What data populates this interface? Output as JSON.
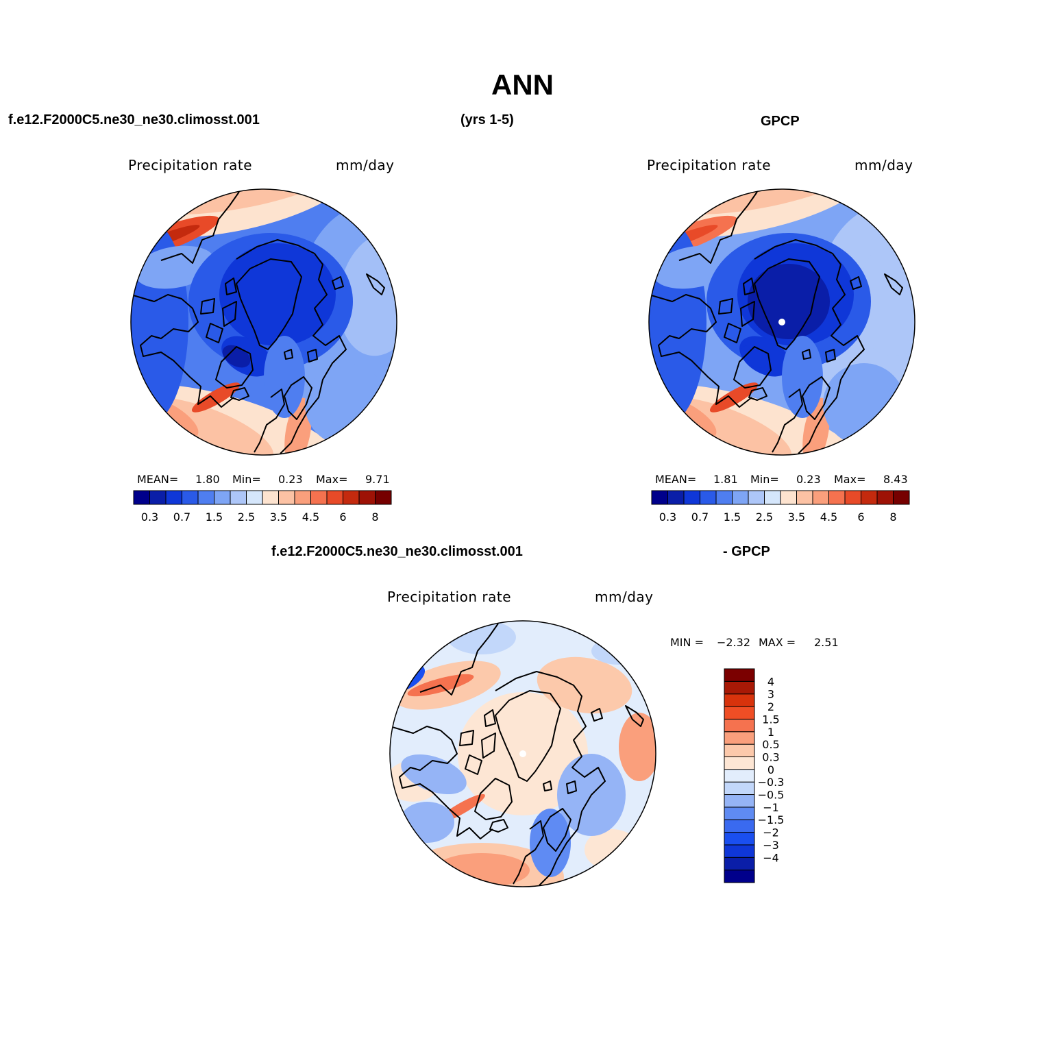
{
  "figure": {
    "title": "ANN",
    "top_case": "f.e12.F2000C5.ne30_ne30.climosst.001",
    "years": "(yrs 1-5)",
    "top_obs": "GPCP",
    "bottom_case": "f.e12.F2000C5.ne30_ne30.climosst.001",
    "bottom_obs": "- GPCP"
  },
  "palettes": {
    "abs": [
      "#00008b",
      "#0a1ea8",
      "#0f37d8",
      "#2a5ae8",
      "#4f7ef0",
      "#7ea5f5",
      "#adc6f8",
      "#d5e6fb",
      "#fde3cf",
      "#fcc2a4",
      "#fa9f7c",
      "#f5724f",
      "#e84a28",
      "#c42a0e",
      "#9e1206",
      "#760000"
    ],
    "diff": [
      "#00008b",
      "#0a1ea8",
      "#0f37d8",
      "#1a4ff0",
      "#3a6af0",
      "#5f8bf3",
      "#95b4f6",
      "#c2d7fa",
      "#e2edfc",
      "#fde6d4",
      "#fcc9ab",
      "#fa9f7c",
      "#f5724f",
      "#f04e25",
      "#d8330c",
      "#a81906",
      "#7b0000"
    ]
  },
  "chart_data": [
    {
      "type": "heatmap",
      "panel": "model",
      "projection": "north-polar-stereographic",
      "title_left": "Precipitation rate",
      "title_right": "mm/day",
      "units": "mm/day",
      "stats_labels": {
        "mean": "MEAN=",
        "min": "Min=",
        "max": "Max="
      },
      "mean": "1.80",
      "min": "0.23",
      "max": "9.71",
      "levels": [
        "0.3",
        "0.7",
        "1.5",
        "2.5",
        "3.5",
        "4.5",
        "6",
        "8"
      ],
      "colorbar_orientation": "horizontal",
      "pole_marker": false
    },
    {
      "type": "heatmap",
      "panel": "observations",
      "projection": "north-polar-stereographic",
      "title_left": "Precipitation rate",
      "title_right": "mm/day",
      "units": "mm/day",
      "stats_labels": {
        "mean": "MEAN=",
        "min": "Min=",
        "max": "Max="
      },
      "mean": "1.81",
      "min": "0.23",
      "max": "8.43",
      "levels": [
        "0.3",
        "0.7",
        "1.5",
        "2.5",
        "3.5",
        "4.5",
        "6",
        "8"
      ],
      "colorbar_orientation": "horizontal",
      "pole_marker": true
    },
    {
      "type": "heatmap",
      "panel": "difference",
      "projection": "north-polar-stereographic",
      "title_left": "Precipitation rate",
      "title_right": "mm/day",
      "units": "mm/day",
      "stats_labels": {
        "min": "MIN =",
        "max": "MAX ="
      },
      "min": "−2.32",
      "max": "2.51",
      "levels": [
        "4",
        "3",
        "2",
        "1.5",
        "1",
        "0.5",
        "0.3",
        "0",
        "−0.3",
        "−0.5",
        "−1",
        "−1.5",
        "−2",
        "−3",
        "−4"
      ],
      "colorbar_orientation": "vertical",
      "pole_marker": true
    }
  ]
}
